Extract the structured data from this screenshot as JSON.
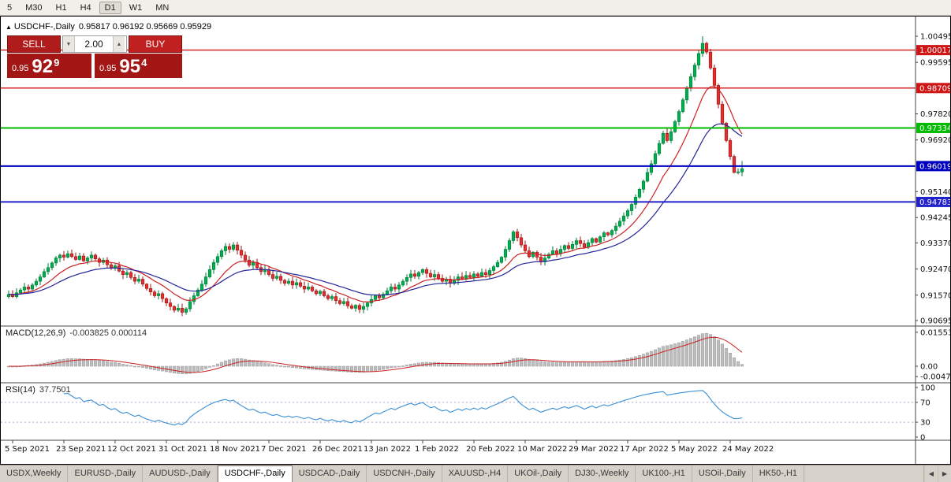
{
  "toolbar": {
    "timeframes": [
      "5",
      "M30",
      "H1",
      "H4",
      "D1",
      "W1",
      "MN"
    ],
    "active": "D1"
  },
  "icons": {
    "collapse": "▲",
    "volume_down": "▼",
    "volume_up": "▲",
    "scroll_left": "◀",
    "scroll_right": "▶"
  },
  "chart": {
    "symbol_period": "USDCHF-,Daily",
    "ohlc": "0.95817 0.96192 0.95669 0.95929"
  },
  "trade_panel": {
    "sell_label": "SELL",
    "buy_label": "BUY",
    "volume": "2.00",
    "bid": {
      "prefix": "0.95",
      "big": "92",
      "sup": "9"
    },
    "ask": {
      "prefix": "0.95",
      "big": "95",
      "sup": "4"
    }
  },
  "macd_panel": {
    "title": "MACD(12,26,9)",
    "values": "-0.003825 0.000114"
  },
  "rsi_panel": {
    "title": "RSI(14)",
    "value": "37.7501"
  },
  "tabs": {
    "items": [
      "USDX,Weekly",
      "EURUSD-,Daily",
      "AUDUSD-,Daily",
      "USDCHF-,Daily",
      "USDCAD-,Daily",
      "USDCNH-,Daily",
      "XAUUSD-,H4",
      "UKOil-,Daily",
      "DJ30-,Weekly",
      "UK100-,H1",
      "USOil-,Daily",
      "HK50-,H1"
    ],
    "active_index": 3
  },
  "chart_data": {
    "type": "candlestick",
    "symbol": "USDCHF",
    "timeframe": "Daily",
    "y_axis_ticks": [
      "1.00495",
      "0.99595",
      "0.98700",
      "0.97820",
      "0.96920",
      "0.96020",
      "0.95140",
      "0.94245",
      "0.93370",
      "0.92470",
      "0.91570",
      "0.90695"
    ],
    "horizontal_lines": [
      {
        "price": 1.00017,
        "label": "1.00017",
        "color": "#d01515",
        "width": 1.4
      },
      {
        "price": 0.98709,
        "label": "0.98709",
        "color": "#d01515",
        "width": 1.4
      },
      {
        "price": 0.97334,
        "label": "0.97334",
        "color": "#00bb00",
        "width": 2
      },
      {
        "price": 0.96019,
        "label": "0.96019",
        "color": "#0000c0",
        "width": 2
      },
      {
        "price": 0.94783,
        "label": "0.94783",
        "color": "#2222cc",
        "width": 2
      }
    ],
    "x_axis_labels": [
      "5 Sep 2021",
      "23 Sep 2021",
      "12 Oct 2021",
      "31 Oct 2021",
      "18 Nov 2021",
      "7 Dec 2021",
      "26 Dec 2021",
      "13 Jan 2022",
      "1 Feb 2022",
      "20 Feb 2022",
      "10 Mar 2022",
      "29 Mar 2022",
      "17 Apr 2022",
      "5 May 2022",
      "24 May 2022"
    ],
    "closes": [
      0.916,
      0.9152,
      0.9165,
      0.9175,
      0.9185,
      0.9178,
      0.9192,
      0.9205,
      0.922,
      0.9238,
      0.9252,
      0.9268,
      0.9285,
      0.9295,
      0.9288,
      0.93,
      0.929,
      0.928,
      0.9292,
      0.9275,
      0.9285,
      0.9295,
      0.9282,
      0.927,
      0.9278,
      0.9262,
      0.925,
      0.9258,
      0.924,
      0.9228,
      0.9235,
      0.9218,
      0.9205,
      0.9212,
      0.9195,
      0.918,
      0.9168,
      0.9155,
      0.9162,
      0.9145,
      0.913,
      0.9118,
      0.9105,
      0.9112,
      0.9098,
      0.911,
      0.9135,
      0.9155,
      0.9175,
      0.9195,
      0.922,
      0.9245,
      0.927,
      0.929,
      0.931,
      0.9325,
      0.9315,
      0.933,
      0.9312,
      0.9295,
      0.9278,
      0.926,
      0.927,
      0.9252,
      0.9238,
      0.9245,
      0.9228,
      0.9215,
      0.9222,
      0.9208,
      0.9198,
      0.9205,
      0.9192,
      0.92,
      0.9188,
      0.9178,
      0.9185,
      0.9172,
      0.9162,
      0.917,
      0.9155,
      0.9145,
      0.9152,
      0.9138,
      0.9128,
      0.9135,
      0.912,
      0.9112,
      0.9122,
      0.9108,
      0.9118,
      0.913,
      0.9142,
      0.9155,
      0.9148,
      0.916,
      0.9172,
      0.9185,
      0.9178,
      0.9192,
      0.9205,
      0.9218,
      0.923,
      0.9222,
      0.9235,
      0.9245,
      0.9232,
      0.922,
      0.9228,
      0.9215,
      0.9205,
      0.9212,
      0.9198,
      0.9208,
      0.922,
      0.9212,
      0.9225,
      0.9218,
      0.923,
      0.9222,
      0.9235,
      0.9228,
      0.9242,
      0.9255,
      0.927,
      0.9288,
      0.9315,
      0.9345,
      0.9375,
      0.9355,
      0.933,
      0.931,
      0.929,
      0.9305,
      0.9288,
      0.9272,
      0.9285,
      0.9298,
      0.931,
      0.93,
      0.9315,
      0.9328,
      0.9318,
      0.9332,
      0.9345,
      0.9335,
      0.9322,
      0.9338,
      0.9352,
      0.934,
      0.9358,
      0.9372,
      0.9365,
      0.938,
      0.9395,
      0.9412,
      0.943,
      0.9448,
      0.947,
      0.9495,
      0.9522,
      0.955,
      0.958,
      0.961,
      0.9645,
      0.968,
      0.9715,
      0.969,
      0.972,
      0.9755,
      0.979,
      0.983,
      0.987,
      0.991,
      0.995,
      0.999,
      1.0025,
      0.9995,
      0.994,
      0.988,
      0.9815,
      0.975,
      0.969,
      0.9635,
      0.958,
      0.9582,
      0.9593
    ],
    "last_candle": {
      "open": 0.95817,
      "high": 0.96192,
      "low": 0.95669,
      "close": 0.95929
    },
    "peak_high": 1.00495,
    "ma_lines": [
      {
        "name": "ma-fast",
        "period": 12,
        "color": "#cc2222"
      },
      {
        "name": "ma-slow",
        "period": 26,
        "color": "#24249a"
      }
    ],
    "macd": {
      "params": [
        12,
        26,
        9
      ],
      "current": -0.003825,
      "signal_current": 0.000114,
      "axis_ticks": [
        {
          "v": 0.015534,
          "label": "0.015534"
        },
        {
          "v": 0,
          "label": "0.00"
        },
        {
          "v": -0.00474,
          "label": "-0.00474"
        }
      ]
    },
    "rsi": {
      "period": 14,
      "current": 37.7501,
      "axis_ticks": [
        100,
        70,
        30,
        0
      ],
      "levels": [
        70,
        30
      ]
    },
    "colors": {
      "up": "#00b050",
      "up_stroke": "#007a38",
      "down": "#e23030",
      "down_stroke": "#a31212",
      "macd_hist": "#bdbdbd",
      "macd_signal": "#cc2222",
      "rsi_line": "#3b8fd4"
    }
  }
}
